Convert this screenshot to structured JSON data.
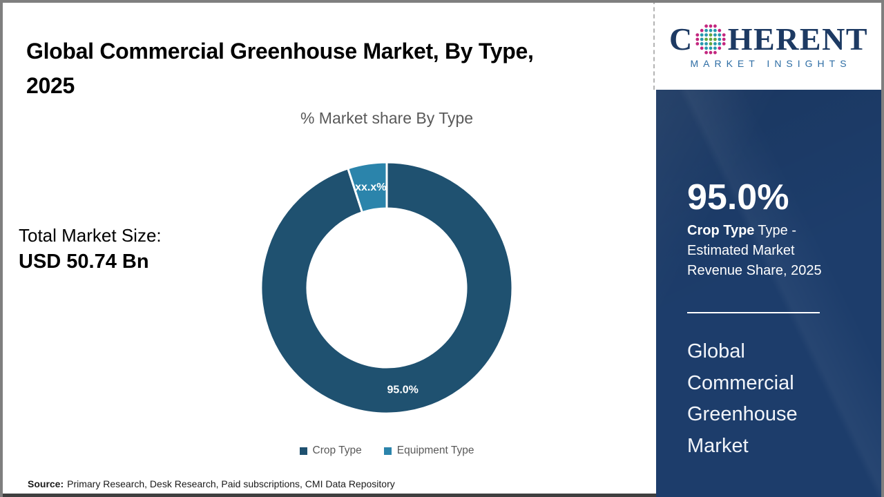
{
  "page": {
    "title_heading": "Global Commercial Greenhouse Market, By Type, 2025"
  },
  "logo": {
    "prefix": "C",
    "suffix": "HERENT",
    "tagline": "MARKET INSIGHTS",
    "text_color": "#1d3a63",
    "tagline_color": "#2d6da4",
    "globe_colors": {
      "inner": "#64a63f",
      "mid": "#2798ad",
      "outer": "#c3277f"
    }
  },
  "stats": {
    "total_label": "Total Market Size:",
    "total_value": "USD 50.74 Bn"
  },
  "chart_data": {
    "type": "pie",
    "variant": "donut",
    "title": "% Market share By Type",
    "categories": [
      "Crop Type",
      "Equipment Type"
    ],
    "values": [
      95.0,
      5.0
    ],
    "labels": [
      "95.0%",
      "xx.x%"
    ],
    "colors": [
      "#1F5170",
      "#2B84AB"
    ],
    "start_angle_deg": 0,
    "direction": "clockwise",
    "donut_hole_ratio": 0.63,
    "legend_position": "bottom"
  },
  "sidebar": {
    "stat_value": "95.0%",
    "stat_label_bold": "Crop Type",
    "stat_label_rest": "Type - Estimated Market Revenue Share, 2025",
    "market_name": "Global Commercial Greenhouse Market",
    "background_color": "#1D3D6B"
  },
  "source": {
    "label": "Source:",
    "text": "Primary Research, Desk Research, Paid subscriptions, CMI Data Repository"
  }
}
